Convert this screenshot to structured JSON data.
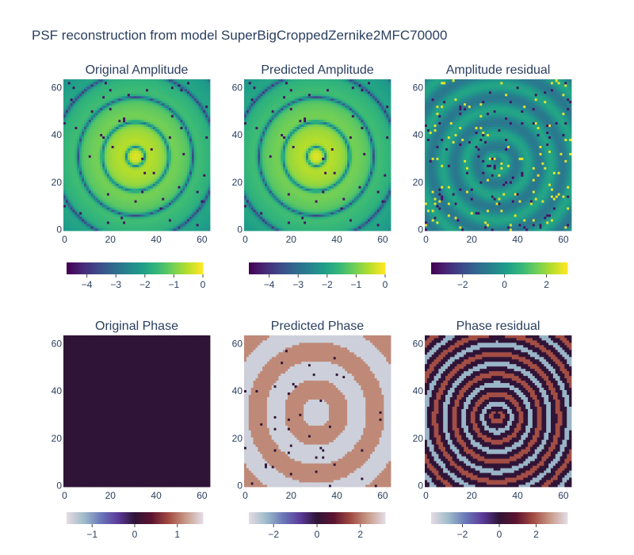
{
  "figure": {
    "title": "PSF reconstruction from model SuperBigCroppedZernike2MFC70000"
  },
  "colors": {
    "background": "#ffffff",
    "text": "#2a3f5f",
    "viridis": [
      "#440154",
      "#482878",
      "#3e4989",
      "#31688e",
      "#26828e",
      "#1f9e89",
      "#35b779",
      "#6ece58",
      "#b5de2b",
      "#fde725"
    ],
    "twilight": [
      "#e2d9e2",
      "#9ebbc9",
      "#6a77b8",
      "#5c3b9a",
      "#301437",
      "#5d1430",
      "#a14a41",
      "#c69886",
      "#e2d9e2"
    ]
  },
  "chart_data": [
    {
      "type": "heatmap",
      "name": "original_amplitude",
      "title": "Original Amplitude",
      "pattern": "rings",
      "colorscale": "viridis",
      "zrange": [
        -4.7,
        0
      ],
      "xlim": [
        0,
        63
      ],
      "ylim": [
        0,
        63
      ],
      "x_ticks": [
        "0",
        "20",
        "40",
        "60"
      ],
      "y_ticks": [
        "0",
        "20",
        "40",
        "60"
      ],
      "colorbar_ticks": [
        {
          "label": "−4",
          "value": -4
        },
        {
          "label": "−3",
          "value": -3
        },
        {
          "label": "−2",
          "value": -2
        },
        {
          "label": "−1",
          "value": -1
        },
        {
          "label": "0",
          "value": 0
        }
      ]
    },
    {
      "type": "heatmap",
      "name": "predicted_amplitude",
      "title": "Predicted Amplitude",
      "pattern": "rings",
      "colorscale": "viridis",
      "zrange": [
        -4.7,
        0
      ],
      "xlim": [
        0,
        63
      ],
      "ylim": [
        0,
        63
      ],
      "x_ticks": [
        "0",
        "20",
        "40",
        "60"
      ],
      "y_ticks": [
        "0",
        "20",
        "40",
        "60"
      ],
      "colorbar_ticks": [
        {
          "label": "−4",
          "value": -4
        },
        {
          "label": "−3",
          "value": -3
        },
        {
          "label": "−2",
          "value": -2
        },
        {
          "label": "−1",
          "value": -1
        },
        {
          "label": "0",
          "value": 0
        }
      ]
    },
    {
      "type": "heatmap",
      "name": "amplitude_residual",
      "title": "Amplitude residual",
      "pattern": "residual_rings",
      "colorscale": "viridis",
      "zrange": [
        -3.5,
        3
      ],
      "xlim": [
        0,
        63
      ],
      "ylim": [
        0,
        63
      ],
      "x_ticks": [
        "0",
        "20",
        "40",
        "60"
      ],
      "y_ticks": [
        "0",
        "20",
        "40",
        "60"
      ],
      "colorbar_ticks": [
        {
          "label": "−2",
          "value": -2
        },
        {
          "label": "0",
          "value": 0
        },
        {
          "label": "2",
          "value": 2
        }
      ]
    },
    {
      "type": "heatmap",
      "name": "original_phase",
      "title": "Original Phase",
      "pattern": "uniform",
      "colorscale": "twilight",
      "zrange": [
        -1.6,
        1.6
      ],
      "xlim": [
        0,
        63
      ],
      "ylim": [
        0,
        63
      ],
      "x_ticks": [
        "0",
        "20",
        "40",
        "60"
      ],
      "y_ticks": [
        "0",
        "20",
        "40",
        "60"
      ],
      "colorbar_ticks": [
        {
          "label": "−1",
          "value": -1
        },
        {
          "label": "0",
          "value": 0
        },
        {
          "label": "1",
          "value": 1
        }
      ]
    },
    {
      "type": "heatmap",
      "name": "predicted_phase",
      "title": "Predicted Phase",
      "pattern": "phase_bands",
      "colorscale": "twilight",
      "zrange": [
        -3.14,
        3.14
      ],
      "xlim": [
        0,
        63
      ],
      "ylim": [
        0,
        63
      ],
      "x_ticks": [
        "0",
        "20",
        "40",
        "60"
      ],
      "y_ticks": [
        "0",
        "20",
        "40",
        "60"
      ],
      "colorbar_ticks": [
        {
          "label": "−2",
          "value": -2
        },
        {
          "label": "0",
          "value": 0
        },
        {
          "label": "2",
          "value": 2
        }
      ]
    },
    {
      "type": "heatmap",
      "name": "phase_residual",
      "title": "Phase residual",
      "pattern": "phase_residual",
      "colorscale": "twilight",
      "zrange": [
        -3.7,
        3.7
      ],
      "xlim": [
        0,
        63
      ],
      "ylim": [
        0,
        63
      ],
      "x_ticks": [
        "0",
        "20",
        "40",
        "60"
      ],
      "y_ticks": [
        "0",
        "20",
        "40",
        "60"
      ],
      "colorbar_ticks": [
        {
          "label": "−2",
          "value": -2
        },
        {
          "label": "0",
          "value": 0
        },
        {
          "label": "2",
          "value": 2
        }
      ]
    }
  ]
}
